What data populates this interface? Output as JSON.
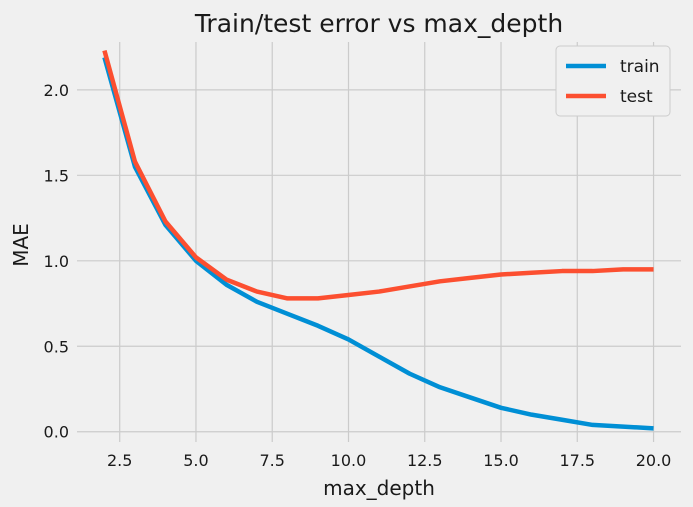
{
  "chart_data": {
    "type": "line",
    "title": "Train/test error vs max_depth",
    "xlabel": "max_depth",
    "ylabel": "MAE",
    "xlim": [
      1.1,
      20.9
    ],
    "ylim": [
      -0.06,
      2.28
    ],
    "xticks": [
      2.5,
      5.0,
      7.5,
      10.0,
      12.5,
      15.0,
      17.5,
      20.0
    ],
    "xtick_labels": [
      "2.5",
      "5.0",
      "7.5",
      "10.0",
      "12.5",
      "15.0",
      "17.5",
      "20.0"
    ],
    "yticks": [
      0.0,
      0.5,
      1.0,
      1.5,
      2.0
    ],
    "ytick_labels": [
      "0.0",
      "0.5",
      "1.0",
      "1.5",
      "2.0"
    ],
    "grid": true,
    "legend_position": "top-right",
    "x": [
      2,
      3,
      4,
      5,
      6,
      7,
      8,
      9,
      10,
      11,
      12,
      13,
      14,
      15,
      16,
      17,
      18,
      19,
      20
    ],
    "series": [
      {
        "name": "train",
        "color": "#008fd5",
        "values": [
          2.19,
          1.55,
          1.21,
          1.0,
          0.86,
          0.76,
          0.69,
          0.62,
          0.54,
          0.44,
          0.34,
          0.26,
          0.2,
          0.14,
          0.1,
          0.07,
          0.04,
          0.03,
          0.02
        ]
      },
      {
        "name": "test",
        "color": "#fc4f30",
        "values": [
          2.23,
          1.58,
          1.23,
          1.02,
          0.89,
          0.82,
          0.78,
          0.78,
          0.8,
          0.82,
          0.85,
          0.88,
          0.9,
          0.92,
          0.93,
          0.94,
          0.94,
          0.95,
          0.95
        ]
      }
    ]
  }
}
